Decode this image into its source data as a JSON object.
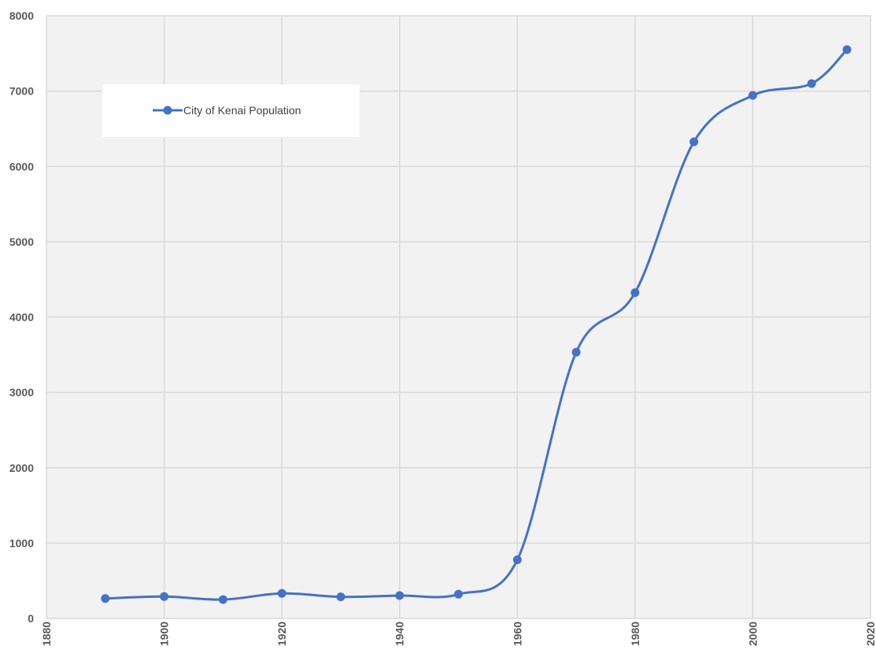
{
  "chart_data": {
    "type": "line",
    "title": "",
    "xlabel": "",
    "ylabel": "",
    "xlim": [
      1880,
      2020
    ],
    "ylim": [
      0,
      8000
    ],
    "x_ticks": [
      1880,
      1900,
      1920,
      1940,
      1960,
      1980,
      2000,
      2020
    ],
    "y_ticks": [
      0,
      1000,
      2000,
      3000,
      4000,
      5000,
      6000,
      7000,
      8000
    ],
    "grid": true,
    "smooth": true,
    "legend_position": "top-left",
    "series": [
      {
        "name": "City of Kenai Population",
        "color": "#4472C4",
        "marker": "circle",
        "x": [
          1890,
          1900,
          1910,
          1920,
          1930,
          1940,
          1950,
          1960,
          1970,
          1980,
          1990,
          2000,
          2010,
          2016
        ],
        "values": [
          264,
          290,
          250,
          332,
          286,
          303,
          321,
          778,
          3533,
          4324,
          6327,
          6942,
          7100,
          7550
        ]
      }
    ]
  },
  "colors": {
    "plot_background": "#F2F2F2",
    "gridline": "#D9D9D9",
    "axis_text": "#595959",
    "legend_background": "#FFFFFF"
  }
}
